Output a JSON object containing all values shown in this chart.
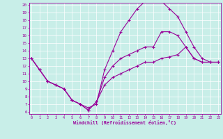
{
  "xlabel": "Windchill (Refroidissement éolien,°C)",
  "bg_color": "#c8eee8",
  "line_color": "#990099",
  "xmin": 0,
  "xmax": 23,
  "ymin": 6,
  "ymax": 20,
  "yticks": [
    6,
    7,
    8,
    9,
    10,
    11,
    12,
    13,
    14,
    15,
    16,
    17,
    18,
    19,
    20
  ],
  "xticks": [
    0,
    1,
    2,
    3,
    4,
    5,
    6,
    7,
    8,
    9,
    10,
    11,
    12,
    13,
    14,
    15,
    16,
    17,
    18,
    19,
    20,
    21,
    22,
    23
  ],
  "series1_x": [
    0,
    1,
    2,
    3,
    4,
    5,
    6,
    7,
    8,
    9,
    10,
    11,
    12,
    13,
    14,
    15,
    16,
    17,
    18,
    19,
    20,
    21,
    22,
    23
  ],
  "series1_y": [
    13,
    11.5,
    10,
    9.5,
    9,
    7.5,
    7,
    6.5,
    7,
    11.5,
    14,
    16.5,
    18,
    19.5,
    20.5,
    20.5,
    20.5,
    19.5,
    18.5,
    16.5,
    14.5,
    13,
    12.5,
    12.5
  ],
  "series2_x": [
    0,
    1,
    2,
    3,
    4,
    5,
    6,
    7,
    8,
    9,
    10,
    11,
    12,
    13,
    14,
    15,
    16,
    17,
    18,
    19,
    20,
    21,
    22,
    23
  ],
  "series2_y": [
    13,
    11.5,
    10,
    9.5,
    9,
    7.5,
    7,
    6.2,
    7.3,
    10.5,
    12,
    13,
    13.5,
    14,
    14.5,
    14.5,
    16.5,
    16.5,
    16,
    14.5,
    13,
    12.5,
    12.5,
    12.5
  ],
  "series3_x": [
    0,
    1,
    2,
    3,
    4,
    5,
    6,
    7,
    8,
    9,
    10,
    11,
    12,
    13,
    14,
    15,
    16,
    17,
    18,
    19,
    20,
    21,
    22,
    23
  ],
  "series3_y": [
    13,
    11.5,
    10,
    9.5,
    9,
    7.5,
    7,
    6.2,
    7.3,
    9.5,
    10.5,
    11,
    11.5,
    12,
    12.5,
    12.5,
    13,
    13.2,
    13.5,
    14.5,
    13,
    12.5,
    12.5,
    12.5
  ]
}
